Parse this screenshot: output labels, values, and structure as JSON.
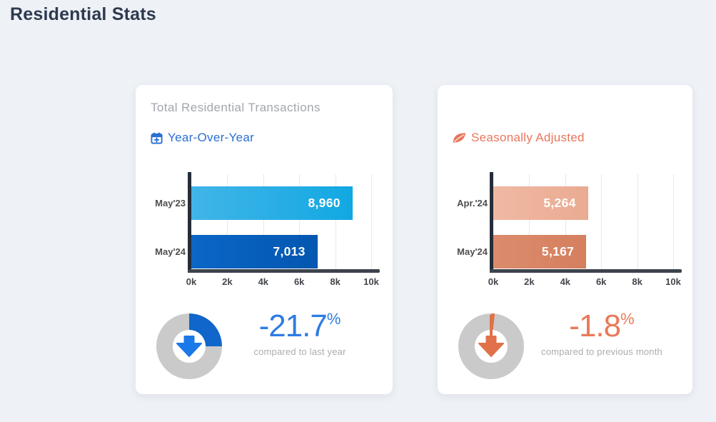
{
  "page": {
    "title": "Residential Stats"
  },
  "theme": {
    "background": "#eef1f6",
    "card_background": "#ffffff",
    "title_color": "#2e3a4e",
    "muted_text": "#a2a6ad",
    "axis_color": "#3c434d",
    "axis_bar_color": "#262d39",
    "tick_text_color": "#43474c",
    "gridline_color": "#e8e8e8",
    "ring_gray": "#cacaca"
  },
  "cards": {
    "left": {
      "title": "Total Residential Transactions",
      "badge": {
        "label": "Year-Over-Year",
        "icon": "calendar-plus-icon",
        "color": "#2a6fd2"
      },
      "chart_index": 0,
      "gauge": {
        "value_label": "-21.7",
        "unit": "%",
        "caption": "compared to last year",
        "ring_fill_deg": 90,
        "ring_color": "#1166cb",
        "arrow_color": "#1b78e8",
        "text_color": "#2f7ce2",
        "direction": "down",
        "show_stem": false
      }
    },
    "right": {
      "title": "",
      "badge": {
        "label": "Seasonally Adjusted",
        "icon": "leaf-icon",
        "color": "#e8755c"
      },
      "chart_index": 1,
      "gauge": {
        "value_label": "-1.8",
        "unit": "%",
        "caption": "compared to previous month",
        "ring_fill_deg": 6.5,
        "ring_color": "#e0714a",
        "arrow_color": "#e0714a",
        "text_color": "#e87a58",
        "direction": "down",
        "show_stem": true
      }
    }
  },
  "chart_data": [
    {
      "type": "bar",
      "orientation": "horizontal",
      "title": "Total Residential Transactions",
      "subtitle": "Year-Over-Year",
      "categories": [
        "May'23",
        "May'24"
      ],
      "values": [
        8960,
        7013
      ],
      "value_labels": [
        "8,960",
        "7,013"
      ],
      "xlim": [
        0,
        10000
      ],
      "tick_labels": [
        "0k",
        "2k",
        "4k",
        "6k",
        "8k",
        "10k"
      ],
      "grid": true,
      "legend": "none",
      "bar_colors": [
        [
          "#41b5e8",
          "#12a8e2"
        ],
        [
          "#0b66c6",
          "#0357b0"
        ]
      ],
      "change": {
        "percent": -21.7,
        "label": "compared to last year"
      }
    },
    {
      "type": "bar",
      "orientation": "horizontal",
      "title": "Total Residential Transactions",
      "subtitle": "Seasonally Adjusted",
      "categories": [
        "Apr.'24",
        "May'24"
      ],
      "values": [
        5264,
        5167
      ],
      "value_labels": [
        "5,264",
        "5,167"
      ],
      "xlim": [
        0,
        10000
      ],
      "tick_labels": [
        "0k",
        "2k",
        "4k",
        "6k",
        "8k",
        "10k"
      ],
      "grid": true,
      "legend": "none",
      "bar_colors": [
        [
          "#f0b8a3",
          "#eaab92"
        ],
        [
          "#db8c6d",
          "#d57f5e"
        ]
      ],
      "change": {
        "percent": -1.8,
        "label": "compared to previous month"
      }
    }
  ]
}
